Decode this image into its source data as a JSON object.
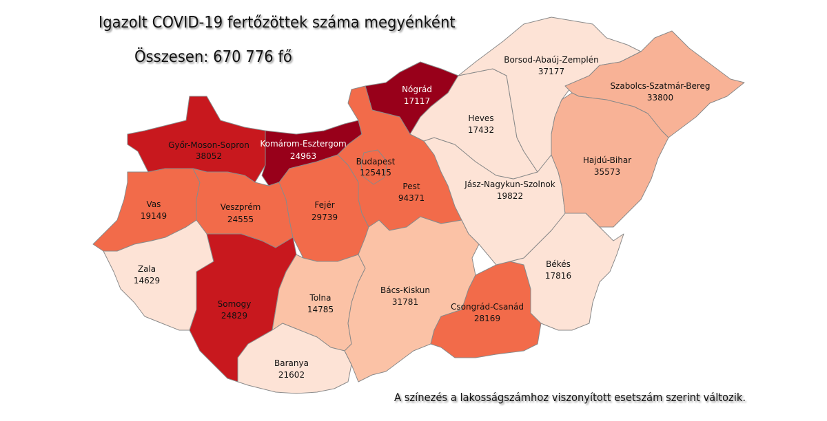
{
  "title": "Igazolt COVID-19 fertőzöttek száma megyénként",
  "total": "Összesen: 670 776 fő",
  "note": "A színezés a lakosságszámhoz viszonyított esetszám szerint változik.",
  "colors": {
    "lightest": "#fde3d6",
    "light": "#fbc2a6",
    "medium": "#f8b296",
    "orange": "#f26b4a",
    "red": "#c8181e",
    "darkred": "#98001a"
  },
  "counties": {
    "gyor": {
      "name": "Győr-Moson-Sopron",
      "cases": "38052",
      "color": "#c8181e"
    },
    "komarom": {
      "name": "Komárom-Esztergom",
      "cases": "24963",
      "color": "#98001a"
    },
    "nograd": {
      "name": "Nógrád",
      "cases": "17117",
      "color": "#98001a"
    },
    "pest": {
      "name": "Pest",
      "cases": "94371",
      "color": "#f26b4a"
    },
    "budapest": {
      "name": "Budapest",
      "cases": "125415",
      "color": "#f26b4a"
    },
    "vas": {
      "name": "Vas",
      "cases": "19149",
      "color": "#f26b4a"
    },
    "veszprem": {
      "name": "Veszprém",
      "cases": "24555",
      "color": "#f26b4a"
    },
    "fejer": {
      "name": "Fejér",
      "cases": "29739",
      "color": "#f26b4a"
    },
    "zala": {
      "name": "Zala",
      "cases": "14629",
      "color": "#fde3d6"
    },
    "somogy": {
      "name": "Somogy",
      "cases": "24829",
      "color": "#c8181e"
    },
    "tolna": {
      "name": "Tolna",
      "cases": "14785",
      "color": "#fbc2a6"
    },
    "baranya": {
      "name": "Baranya",
      "cases": "21602",
      "color": "#fde3d6"
    },
    "bacs": {
      "name": "Bács-Kiskun",
      "cases": "31781",
      "color": "#fbc2a6"
    },
    "csongrad": {
      "name": "Csongrád-Csanád",
      "cases": "28169",
      "color": "#f26b4a"
    },
    "bekes": {
      "name": "Békés",
      "cases": "17816",
      "color": "#fde3d6"
    },
    "jasz": {
      "name": "Jász-Nagykun-Szolnok",
      "cases": "19822",
      "color": "#fde3d6"
    },
    "heves": {
      "name": "Heves",
      "cases": "17432",
      "color": "#fde3d6"
    },
    "borsod": {
      "name": "Borsod-Abaúj-Zemplén",
      "cases": "37177",
      "color": "#fde3d6"
    },
    "szabolcs": {
      "name": "Szabolcs-Szatmár-Bereg",
      "cases": "33800",
      "color": "#f8b296"
    },
    "hajdu": {
      "name": "Hajdú-Bihar",
      "cases": "35573",
      "color": "#f8b296"
    }
  }
}
